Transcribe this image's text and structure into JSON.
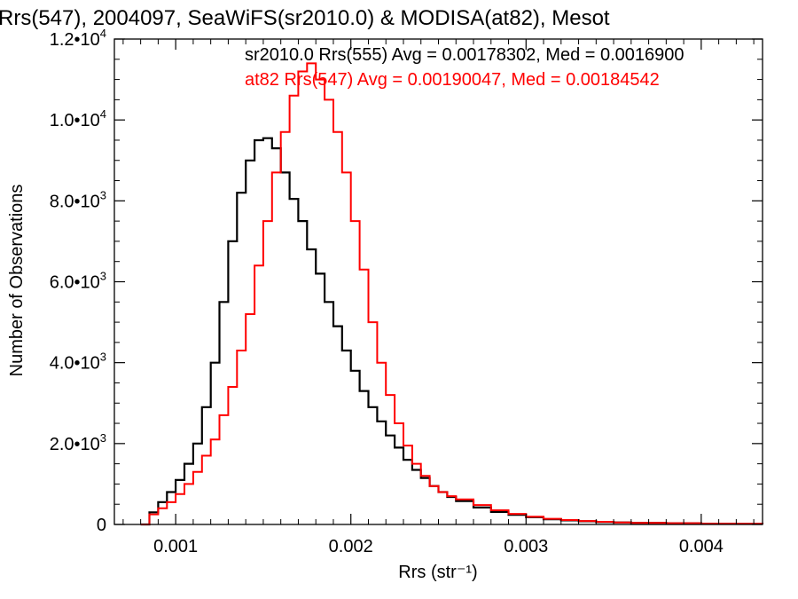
{
  "chart_data": {
    "type": "line",
    "title": "Rrs(547), 2004097, SeaWiFS(sr2010.0) & MODISA(at82), Mesot",
    "xlabel": "Rrs (str⁻¹)",
    "ylabel": "Number of Observations",
    "xlim": [
      0.00065,
      0.00435
    ],
    "ylim": [
      0,
      12000
    ],
    "x_ticks": [
      0.001,
      0.002,
      0.003,
      0.004
    ],
    "x_tick_labels": [
      "0.001",
      "0.002",
      "0.003",
      "0.004"
    ],
    "y_ticks": [
      0,
      2000,
      4000,
      6000,
      8000,
      10000,
      12000
    ],
    "y_tick_labels": [
      {
        "mant": "0",
        "exp": ""
      },
      {
        "mant": "2.0•10",
        "exp": "3"
      },
      {
        "mant": "4.0•10",
        "exp": "3"
      },
      {
        "mant": "6.0•10",
        "exp": "3"
      },
      {
        "mant": "8.0•10",
        "exp": "3"
      },
      {
        "mant": "1.0•10",
        "exp": "4"
      },
      {
        "mant": "1.2•10",
        "exp": "4"
      }
    ],
    "grid": false,
    "legend_position": "top-right",
    "series": [
      {
        "name": "sr2010.0 Rrs(555) Avg = 0.00178302, Med = 0.0016900",
        "color": "#000000",
        "x": [
          0.0008,
          0.00085,
          0.0009,
          0.00095,
          0.001,
          0.00105,
          0.0011,
          0.00115,
          0.0012,
          0.00125,
          0.0013,
          0.00135,
          0.0014,
          0.00145,
          0.0015,
          0.00155,
          0.0016,
          0.00165,
          0.0017,
          0.00175,
          0.0018,
          0.00185,
          0.0019,
          0.00195,
          0.002,
          0.00205,
          0.0021,
          0.00215,
          0.0022,
          0.00225,
          0.0023,
          0.00235,
          0.0024,
          0.00245,
          0.0025,
          0.00255,
          0.0026,
          0.0027,
          0.0028,
          0.0029,
          0.003,
          0.0031,
          0.0032,
          0.0033,
          0.0034,
          0.0035,
          0.0036,
          0.0038,
          0.004,
          0.0042,
          0.00435
        ],
        "values": [
          0,
          300,
          550,
          800,
          1100,
          1500,
          2000,
          2900,
          4000,
          5500,
          7000,
          8200,
          9000,
          9500,
          9550,
          9300,
          8700,
          8050,
          7500,
          6800,
          6200,
          5500,
          4900,
          4300,
          3800,
          3300,
          2900,
          2550,
          2200,
          1900,
          1600,
          1350,
          1150,
          950,
          800,
          680,
          580,
          420,
          310,
          240,
          180,
          130,
          100,
          80,
          60,
          50,
          40,
          30,
          20,
          15,
          10
        ]
      },
      {
        "name": "at82 Rrs(547) Avg = 0.00190047, Med = 0.00184542",
        "color": "#ff0000",
        "x": [
          0.0008,
          0.00085,
          0.0009,
          0.00095,
          0.001,
          0.00105,
          0.0011,
          0.00115,
          0.0012,
          0.00125,
          0.0013,
          0.00135,
          0.0014,
          0.00145,
          0.0015,
          0.00155,
          0.0016,
          0.00165,
          0.0017,
          0.00175,
          0.0018,
          0.00185,
          0.0019,
          0.00195,
          0.002,
          0.00205,
          0.0021,
          0.00215,
          0.0022,
          0.00225,
          0.0023,
          0.00235,
          0.0024,
          0.00245,
          0.0025,
          0.00255,
          0.0026,
          0.0027,
          0.0028,
          0.0029,
          0.003,
          0.0031,
          0.0032,
          0.0033,
          0.0034,
          0.0035,
          0.0036,
          0.0038,
          0.004,
          0.0042,
          0.00435
        ],
        "values": [
          0,
          250,
          400,
          550,
          750,
          1000,
          1300,
          1700,
          2100,
          2700,
          3400,
          4300,
          5200,
          6400,
          7500,
          8700,
          9700,
          10600,
          11200,
          11400,
          11000,
          10500,
          9700,
          8700,
          7500,
          6300,
          5000,
          4000,
          3200,
          2500,
          1950,
          1500,
          1200,
          950,
          800,
          700,
          620,
          480,
          350,
          260,
          190,
          140,
          110,
          85,
          65,
          50,
          40,
          30,
          20,
          15,
          10
        ]
      }
    ]
  }
}
